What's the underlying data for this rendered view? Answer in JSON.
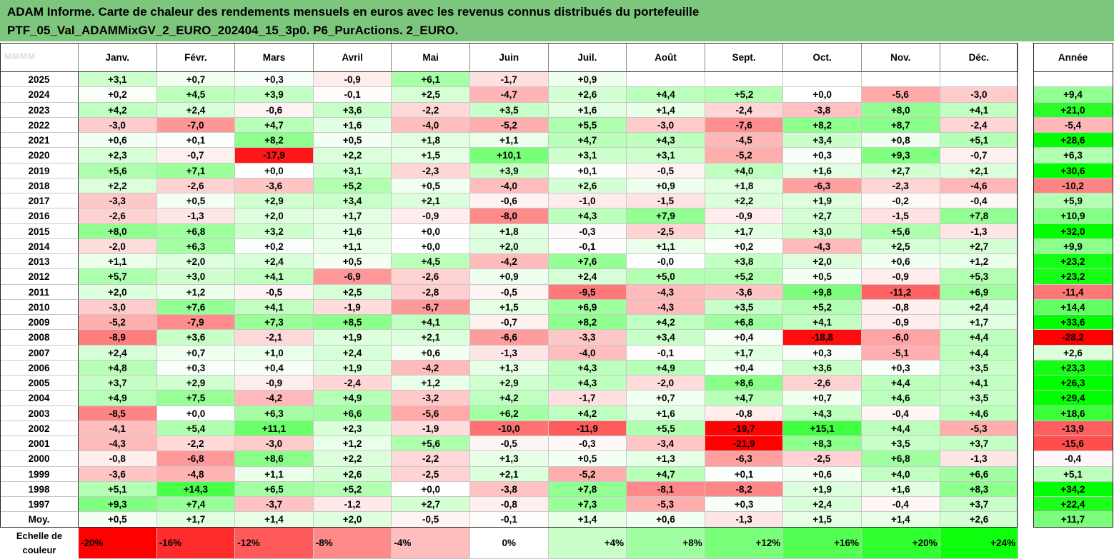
{
  "title": {
    "line1": "ADAM Informe. Carte de chaleur des rendements mensuels en euros avec les revenus connus distribués du portefeuille",
    "line2": "PTF_05_Val_ADAMMixGV_2_EURO_202404_15_3p0. P6_PurActions. 2_EURO."
  },
  "colors": {
    "title_bar": "#7dc67d",
    "negative_max": "#ff0000",
    "neutral": "#ffffff",
    "positive_max": "#00ff00"
  },
  "chart_data": {
    "type": "heatmap",
    "columns": [
      "Janv.",
      "Févr.",
      "Mars",
      "Avril",
      "Mai",
      "Juin",
      "Juil.",
      "Août",
      "Sept.",
      "Oct.",
      "Nov.",
      "Déc."
    ],
    "year_column": "Année",
    "rows": [
      {
        "label": "2025",
        "values": [
          "+3,1",
          "+0,7",
          "+0,3",
          "-0,9",
          "+6,1",
          "-1,7",
          "+0,9",
          "",
          "",
          "",
          "",
          ""
        ],
        "year": ""
      },
      {
        "label": "2024",
        "values": [
          "+0,2",
          "+4,5",
          "+3,9",
          "-0,1",
          "+2,5",
          "-4,7",
          "+2,6",
          "+4,4",
          "+5,2",
          "+0,0",
          "-5,6",
          "-3,0"
        ],
        "year": "+9,4"
      },
      {
        "label": "2023",
        "values": [
          "+4,2",
          "+2,4",
          "-0,6",
          "+3,6",
          "-2,2",
          "+3,5",
          "+1,6",
          "+1,4",
          "-2,4",
          "-3,8",
          "+8,0",
          "+4,1"
        ],
        "year": "+21,0"
      },
      {
        "label": "2022",
        "values": [
          "-3,0",
          "-7,0",
          "+4,7",
          "+1,6",
          "-4,0",
          "-5,2",
          "+5,5",
          "-3,0",
          "-7,6",
          "+8,2",
          "+8,7",
          "-2,4"
        ],
        "year": "-5,4"
      },
      {
        "label": "2021",
        "values": [
          "+0,6",
          "+0,1",
          "+8,2",
          "+0,5",
          "+1,8",
          "+1,1",
          "+4,7",
          "+4,3",
          "-4,5",
          "+3,4",
          "+0,8",
          "+5,1"
        ],
        "year": "+28,6"
      },
      {
        "label": "2020",
        "values": [
          "+2,3",
          "-0,7",
          "-17,9",
          "+2,2",
          "+1,5",
          "+10,1",
          "+3,1",
          "+3,1",
          "-5,2",
          "+0,3",
          "+9,3",
          "-0,7"
        ],
        "year": "+6,3"
      },
      {
        "label": "2019",
        "values": [
          "+5,6",
          "+7,1",
          "+0,0",
          "+3,1",
          "-2,3",
          "+3,9",
          "+0,1",
          "-0,5",
          "+4,0",
          "+1,6",
          "+2,7",
          "+2,1"
        ],
        "year": "+30,6"
      },
      {
        "label": "2018",
        "values": [
          "+2,2",
          "-2,6",
          "-3,6",
          "+5,2",
          "+0,5",
          "-4,0",
          "+2,6",
          "+0,9",
          "+1,8",
          "-6,3",
          "-2,3",
          "-4,6"
        ],
        "year": "-10,2"
      },
      {
        "label": "2017",
        "values": [
          "-3,3",
          "+0,5",
          "+2,9",
          "+3,4",
          "+2,1",
          "-0,6",
          "-1,0",
          "-1,5",
          "+2,2",
          "+1,9",
          "-0,2",
          "-0,4"
        ],
        "year": "+5,9"
      },
      {
        "label": "2016",
        "values": [
          "-2,6",
          "-1,3",
          "+2,0",
          "+1,7",
          "-0,9",
          "-8,0",
          "+4,3",
          "+7,9",
          "-0,9",
          "+2,7",
          "-1,5",
          "+7,8"
        ],
        "year": "+10,9"
      },
      {
        "label": "2015",
        "values": [
          "+8,0",
          "+6,8",
          "+3,2",
          "+1,6",
          "+0,0",
          "+1,8",
          "-0,3",
          "-2,5",
          "+1,7",
          "+3,0",
          "+5,6",
          "-1,3"
        ],
        "year": "+32,0"
      },
      {
        "label": "2014",
        "values": [
          "-2,0",
          "+6,3",
          "+0,2",
          "+1,1",
          "+0,0",
          "+2,0",
          "-0,1",
          "+1,1",
          "+0,2",
          "-4,3",
          "+2,5",
          "+2,7"
        ],
        "year": "+9,9"
      },
      {
        "label": "2013",
        "values": [
          "+1,1",
          "+2,0",
          "+2,4",
          "+0,5",
          "+4,5",
          "-4,2",
          "+7,6",
          "-0,0",
          "+3,8",
          "+2,0",
          "+0,6",
          "+1,2"
        ],
        "year": "+23,2"
      },
      {
        "label": "2012",
        "values": [
          "+5,7",
          "+3,0",
          "+4,1",
          "-6,9",
          "-2,6",
          "+0,9",
          "+2,4",
          "+5,0",
          "+5,2",
          "+0,5",
          "-0,9",
          "+5,3"
        ],
        "year": "+23,2"
      },
      {
        "label": "2011",
        "values": [
          "+2,0",
          "+1,2",
          "-0,5",
          "+2,5",
          "-2,8",
          "-0,5",
          "-9,5",
          "-4,3",
          "-3,6",
          "+9,8",
          "-11,2",
          "+6,9"
        ],
        "year": "-11,4"
      },
      {
        "label": "2010",
        "values": [
          "-3,0",
          "+7,6",
          "+4,1",
          "-1,9",
          "-6,7",
          "+1,5",
          "+6,9",
          "-4,3",
          "+3,5",
          "+5,2",
          "-0,8",
          "+2,4"
        ],
        "year": "+14,4"
      },
      {
        "label": "2009",
        "values": [
          "-5,2",
          "-7,9",
          "+7,3",
          "+8,5",
          "+4,1",
          "-0,7",
          "+8,2",
          "+4,2",
          "+6,8",
          "+4,1",
          "-0,9",
          "+1,7"
        ],
        "year": "+33,6"
      },
      {
        "label": "2008",
        "values": [
          "-8,9",
          "+3,6",
          "-2,1",
          "+1,9",
          "+2,1",
          "-6,6",
          "-3,3",
          "+3,4",
          "+0,4",
          "-18,8",
          "-6,0",
          "+4,4"
        ],
        "year": "-28,2"
      },
      {
        "label": "2007",
        "values": [
          "+2,4",
          "+0,7",
          "+1,0",
          "+2,4",
          "+0,6",
          "-1,3",
          "-4,0",
          "-0,1",
          "+1,7",
          "+0,3",
          "-5,1",
          "+4,4"
        ],
        "year": "+2,6"
      },
      {
        "label": "2006",
        "values": [
          "+4,8",
          "+0,3",
          "+0,4",
          "+1,9",
          "-4,2",
          "+1,3",
          "+4,3",
          "+4,9",
          "+0,4",
          "+3,6",
          "+0,3",
          "+3,5"
        ],
        "year": "+23,3"
      },
      {
        "label": "2005",
        "values": [
          "+3,7",
          "+2,9",
          "-0,9",
          "-2,4",
          "+1,2",
          "+2,9",
          "+4,3",
          "-2,0",
          "+8,6",
          "-2,6",
          "+4,4",
          "+4,1"
        ],
        "year": "+26,3"
      },
      {
        "label": "2004",
        "values": [
          "+4,9",
          "+7,5",
          "-4,2",
          "+4,9",
          "-3,2",
          "+4,2",
          "-1,7",
          "+0,7",
          "+4,7",
          "+0,7",
          "+4,6",
          "+3,5"
        ],
        "year": "+29,4"
      },
      {
        "label": "2003",
        "values": [
          "-8,5",
          "+0,0",
          "+6,3",
          "+6,6",
          "-5,6",
          "+6,2",
          "+4,2",
          "+1,6",
          "-0,8",
          "+4,3",
          "-0,4",
          "+4,6"
        ],
        "year": "+18,6"
      },
      {
        "label": "2002",
        "values": [
          "-4,1",
          "+5,4",
          "+11,1",
          "+2,3",
          "-1,9",
          "-10,0",
          "-11,9",
          "+5,5",
          "-19,7",
          "+15,1",
          "+4,4",
          "-5,3"
        ],
        "year": "-13,9"
      },
      {
        "label": "2001",
        "values": [
          "-4,3",
          "-2,2",
          "-3,0",
          "+1,2",
          "+5,6",
          "-0,5",
          "-0,3",
          "-3,4",
          "-21,9",
          "+8,3",
          "+3,5",
          "+3,7"
        ],
        "year": "-15,6"
      },
      {
        "label": "2000",
        "values": [
          "-0,8",
          "-6,8",
          "+8,6",
          "+2,2",
          "-2,2",
          "+1,3",
          "+0,5",
          "+1,3",
          "-6,3",
          "-2,5",
          "+6,8",
          "-1,3"
        ],
        "year": "-0,4"
      },
      {
        "label": "1999",
        "values": [
          "-3,6",
          "-4,8",
          "+1,1",
          "+2,6",
          "-2,5",
          "+2,1",
          "-5,2",
          "+4,7",
          "+0,1",
          "+0,6",
          "+4,0",
          "+6,6"
        ],
        "year": "+5,1"
      },
      {
        "label": "1998",
        "values": [
          "+5,1",
          "+14,3",
          "+6,5",
          "+5,2",
          "+0,0",
          "-3,8",
          "+7,8",
          "-8,1",
          "-8,2",
          "+1,9",
          "+1,6",
          "+8,3"
        ],
        "year": "+34,2"
      },
      {
        "label": "1997",
        "values": [
          "+9,3",
          "+7,4",
          "-3,7",
          "-1,2",
          "+2,7",
          "-0,8",
          "+7,3",
          "-5,3",
          "+0,3",
          "+2,4",
          "-0,4",
          "+3,7"
        ],
        "year": "+22,4"
      }
    ],
    "average_row": {
      "label": "Moy.",
      "values": [
        "+0,5",
        "+1,7",
        "+1,4",
        "+2,0",
        "-0,5",
        "-0,1",
        "+1,4",
        "+0,6",
        "-1,3",
        "+1,5",
        "+1,4",
        "+2,6"
      ],
      "year": "+11,7"
    },
    "color_scale": {
      "label_line1": "Echelle de",
      "label_line2": "couleur",
      "stops": [
        "-20%",
        "-16%",
        "-12%",
        "-8%",
        "-4%",
        "0%",
        "+4%",
        "+8%",
        "+12%",
        "+16%",
        "+20%",
        "+24%"
      ]
    }
  }
}
